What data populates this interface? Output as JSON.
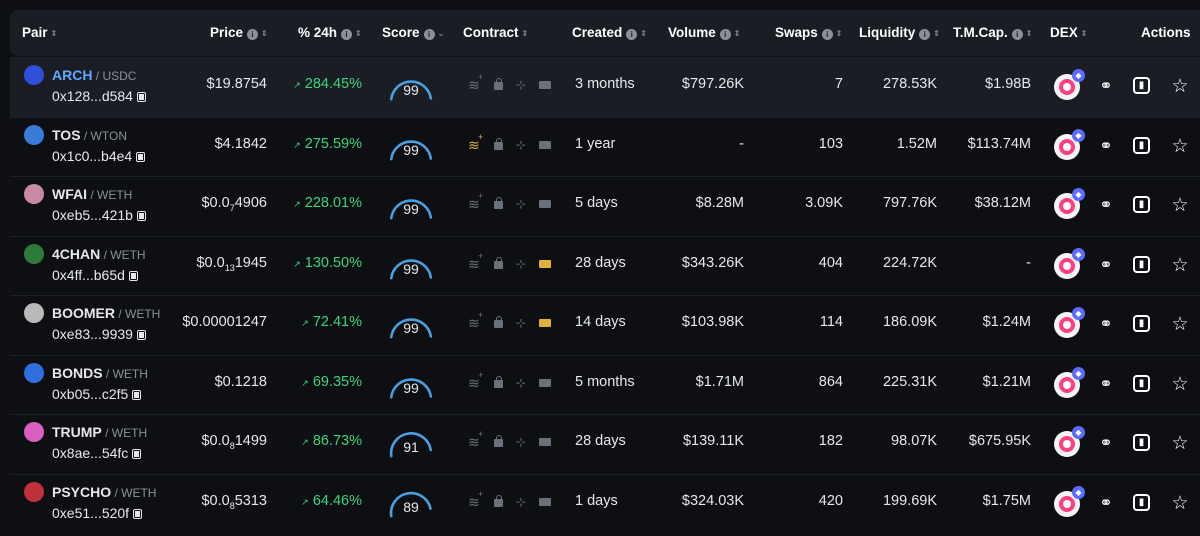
{
  "header": {
    "pair": "Pair",
    "price": "Price",
    "change": "% 24h",
    "score": "Score",
    "contract": "Contract",
    "created": "Created",
    "volume": "Volume",
    "swaps": "Swaps",
    "liquidity": "Liquidity",
    "mcap": "T.M.Cap.",
    "dex": "DEX",
    "actions": "Actions"
  },
  "colors": {
    "positive": "#3ed37a",
    "accent": "#5fa8ff",
    "gauge": "#4a9fe0",
    "warning": "#e0b23c"
  },
  "rows": [
    {
      "base": "ARCH",
      "quote": "USDC",
      "address": "0x128...d584",
      "price_main": "$19.8754",
      "price_sub": "",
      "price_tail": "",
      "change": "284.45%",
      "score": "99",
      "score_value": 99,
      "created": "3 months",
      "volume": "$797.26K",
      "swaps": "7",
      "liquidity": "278.53K",
      "mcap": "$1.98B",
      "icon_color": "#2f4fd8",
      "highlight": true,
      "c1_warn": false,
      "c4_warn": false
    },
    {
      "base": "TOS",
      "quote": "WTON",
      "address": "0x1c0...b4e4",
      "price_main": "$4.1842",
      "price_sub": "",
      "price_tail": "",
      "change": "275.59%",
      "score": "99",
      "score_value": 99,
      "created": "1 year",
      "volume": "-",
      "swaps": "103",
      "liquidity": "1.52M",
      "mcap": "$113.74M",
      "icon_color": "#3b7bd8",
      "highlight": false,
      "c1_warn": true,
      "c4_warn": false
    },
    {
      "base": "WFAI",
      "quote": "WETH",
      "address": "0xeb5...421b",
      "price_main": "$0.0",
      "price_sub": "7",
      "price_tail": "4906",
      "change": "228.01%",
      "score": "99",
      "score_value": 99,
      "created": "5 days",
      "volume": "$8.28M",
      "swaps": "3.09K",
      "liquidity": "797.76K",
      "mcap": "$38.12M",
      "icon_color": "#c98aa8",
      "highlight": false,
      "c1_warn": false,
      "c4_warn": false
    },
    {
      "base": "4CHAN",
      "quote": "WETH",
      "address": "0x4ff...b65d",
      "price_main": "$0.0",
      "price_sub": "13",
      "price_tail": "1945",
      "change": "130.50%",
      "score": "99",
      "score_value": 99,
      "created": "28 days",
      "volume": "$343.26K",
      "swaps": "404",
      "liquidity": "224.72K",
      "mcap": "-",
      "icon_color": "#2d7a3a",
      "highlight": false,
      "c1_warn": false,
      "c4_warn": true
    },
    {
      "base": "BOOMER",
      "quote": "WETH",
      "address": "0xe83...9939",
      "price_main": "$0.00001247",
      "price_sub": "",
      "price_tail": "",
      "change": "72.41%",
      "score": "99",
      "score_value": 99,
      "created": "14 days",
      "volume": "$103.98K",
      "swaps": "114",
      "liquidity": "186.09K",
      "mcap": "$1.24M",
      "icon_color": "#b9b9b9",
      "highlight": false,
      "c1_warn": false,
      "c4_warn": true
    },
    {
      "base": "BONDS",
      "quote": "WETH",
      "address": "0xb05...c2f5",
      "price_main": "$0.1218",
      "price_sub": "",
      "price_tail": "",
      "change": "69.35%",
      "score": "99",
      "score_value": 99,
      "created": "5 months",
      "volume": "$1.71M",
      "swaps": "864",
      "liquidity": "225.31K",
      "mcap": "$1.21M",
      "icon_color": "#2f6fe0",
      "highlight": false,
      "c1_warn": false,
      "c4_warn": false
    },
    {
      "base": "TRUMP",
      "quote": "WETH",
      "address": "0x8ae...54fc",
      "price_main": "$0.0",
      "price_sub": "8",
      "price_tail": "1499",
      "change": "86.73%",
      "score": "91",
      "score_value": 91,
      "created": "28 days",
      "volume": "$139.11K",
      "swaps": "182",
      "liquidity": "98.07K",
      "mcap": "$675.95K",
      "icon_color": "#d85fc0",
      "highlight": false,
      "c1_warn": false,
      "c4_warn": false
    },
    {
      "base": "PSYCHO",
      "quote": "WETH",
      "address": "0xe51...520f",
      "price_main": "$0.0",
      "price_sub": "8",
      "price_tail": "5313",
      "change": "64.46%",
      "score": "89",
      "score_value": 89,
      "created": "1 days",
      "volume": "$324.03K",
      "swaps": "420",
      "liquidity": "199.69K",
      "mcap": "$1.75M",
      "icon_color": "#c0303a",
      "highlight": false,
      "c1_warn": false,
      "c4_warn": false
    }
  ]
}
